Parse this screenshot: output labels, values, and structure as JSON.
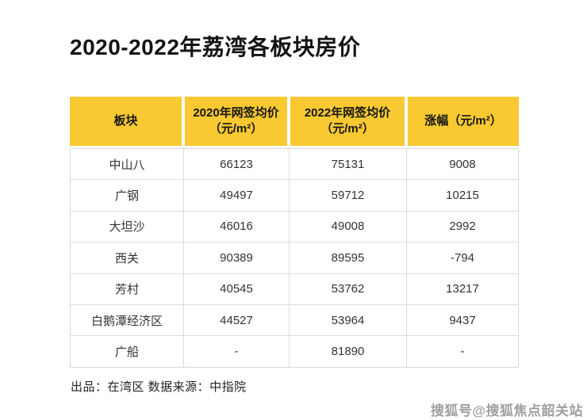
{
  "page": {
    "title": "2020-2022年荔湾各板块房价",
    "source_note": "出品：在湾区  数据来源：中指院",
    "watermark": "搜狐号@搜狐焦点韶关站"
  },
  "colors": {
    "header_bg": "#F8C931",
    "grid_line": "#DCDCDC",
    "background": "#FFFFFF"
  },
  "table": {
    "headers": [
      {
        "top": "板块",
        "bottom": ""
      },
      {
        "top": "2020年网签均价",
        "bottom": "（元/m²）"
      },
      {
        "top": "2022年网签均价",
        "bottom": "（元/m²）"
      },
      {
        "top": "涨幅（元/m²）",
        "bottom": ""
      }
    ]
  },
  "chart_data": {
    "type": "table",
    "title": "2020-2022年荔湾各板块房价",
    "columns": [
      "板块",
      "2020年网签均价（元/m²）",
      "2022年网签均价（元/m²）",
      "涨幅（元/m²）"
    ],
    "rows": [
      [
        "中山八",
        "66123",
        "75131",
        "9008"
      ],
      [
        "广钢",
        "49497",
        "59712",
        "10215"
      ],
      [
        "大坦沙",
        "46016",
        "49008",
        "2992"
      ],
      [
        "西关",
        "90389",
        "89595",
        "-794"
      ],
      [
        "芳村",
        "40545",
        "53762",
        "13217"
      ],
      [
        "白鹅潭经济区",
        "44527",
        "53964",
        "9437"
      ],
      [
        "广船",
        "-",
        "81890",
        "-"
      ]
    ],
    "source_note": "出品：在湾区  数据来源：中指院",
    "layout": {
      "header_style": "yellow-filled",
      "grid": "light-gray-lines"
    }
  }
}
